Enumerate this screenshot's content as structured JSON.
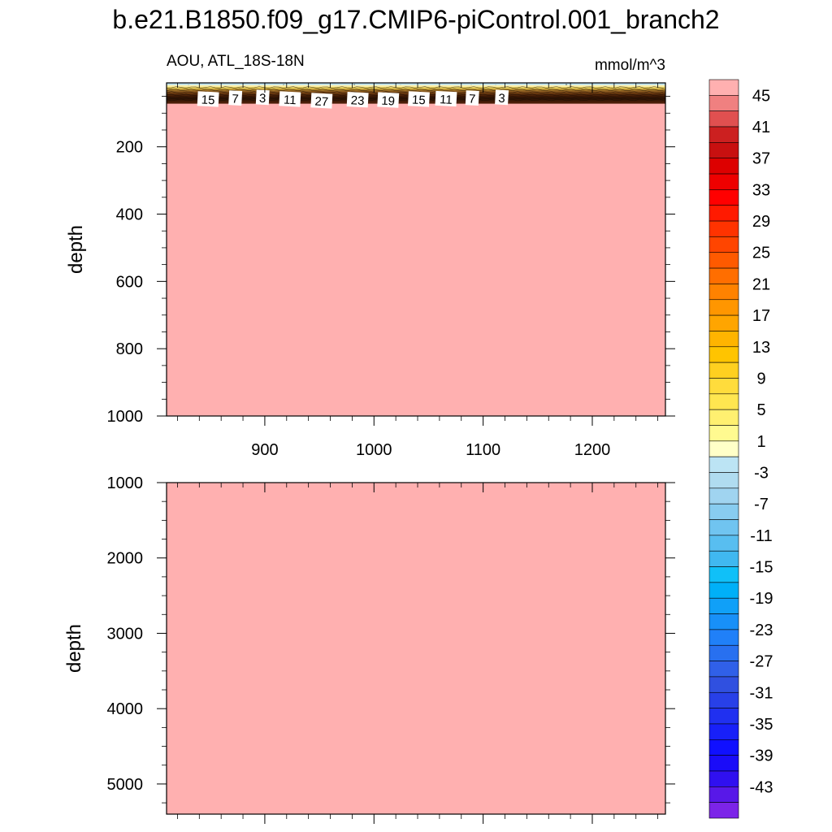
{
  "title": "b.e21.B1850.f09_g17.CMIP6-piControl.001_branch2",
  "subtitle_left": "AOU, ATL_18S-18N",
  "subtitle_right": "mmol/m^3",
  "chart_data": [
    {
      "type": "heatmap",
      "name": "upper",
      "xlabel": "",
      "ylabel": "depth",
      "xlim": [
        810,
        1267
      ],
      "ylim": [
        1000,
        10
      ],
      "y_reversed": true,
      "xticks": [
        900,
        1000,
        1100,
        1200
      ],
      "xtick_labels": [
        "900",
        "1000",
        "1100",
        "1200"
      ],
      "yticks": [
        200,
        400,
        600,
        800,
        1000
      ],
      "ytick_labels": [
        "200",
        "400",
        "600",
        "800",
        "1000"
      ],
      "fill_value": 47,
      "surface_layer_value": -3,
      "surface_layer_depth": [
        10,
        38
      ],
      "gradient_depth": [
        38,
        80
      ],
      "contour_labels": [
        {
          "x": 848,
          "depth": 58,
          "text": "15"
        },
        {
          "x": 873,
          "depth": 55,
          "text": "7"
        },
        {
          "x": 898,
          "depth": 53,
          "text": "3"
        },
        {
          "x": 923,
          "depth": 58,
          "text": "11"
        },
        {
          "x": 952,
          "depth": 63,
          "text": "27"
        },
        {
          "x": 985,
          "depth": 60,
          "text": "23"
        },
        {
          "x": 1013,
          "depth": 61,
          "text": "19"
        },
        {
          "x": 1041,
          "depth": 58,
          "text": "15"
        },
        {
          "x": 1066,
          "depth": 57,
          "text": "11"
        },
        {
          "x": 1090,
          "depth": 55,
          "text": "7"
        },
        {
          "x": 1117,
          "depth": 53,
          "text": "3"
        }
      ]
    },
    {
      "type": "heatmap",
      "name": "lower",
      "xlabel": "",
      "ylabel": "depth",
      "xlim": [
        810,
        1267
      ],
      "ylim": [
        5400,
        1000
      ],
      "y_reversed": true,
      "xticks": [
        900,
        1000,
        1100,
        1200
      ],
      "yticks": [
        1000,
        2000,
        3000,
        4000,
        5000
      ],
      "ytick_labels": [
        "1000",
        "2000",
        "3000",
        "4000",
        "5000"
      ],
      "fill_value": 47
    }
  ],
  "colorbar": {
    "labels": [
      "45",
      "41",
      "37",
      "33",
      "29",
      "25",
      "21",
      "17",
      "13",
      "9",
      "5",
      "1",
      "-3",
      "-7",
      "-11",
      "-15",
      "-19",
      "-23",
      "-27",
      "-31",
      "-35",
      "-39",
      "-43"
    ],
    "colors": [
      "#ffb0b0",
      "#f08080",
      "#e05050",
      "#cc2020",
      "#c81010",
      "#dd0000",
      "#ee0000",
      "#ff0000",
      "#ff1a00",
      "#ff3300",
      "#ff4500",
      "#ff5a00",
      "#ff6e00",
      "#ff8200",
      "#ff9600",
      "#ffa500",
      "#ffb400",
      "#ffc400",
      "#ffd020",
      "#ffdc3c",
      "#ffe650",
      "#fff070",
      "#fffa90",
      "#ffffc8",
      "#bce4f4",
      "#b0dcf0",
      "#a0d4f0",
      "#88ccf0",
      "#70c4f0",
      "#58bef0",
      "#40b8f0",
      "#10c0f8",
      "#00b0f8",
      "#10a0f8",
      "#1890f8",
      "#2080f8",
      "#2870f0",
      "#3060e8",
      "#3050e0",
      "#2840e8",
      "#2030f0",
      "#1820f8",
      "#1010ff",
      "#1a0cf8",
      "#3010f0",
      "#5818e8",
      "#7c24e8"
    ]
  }
}
